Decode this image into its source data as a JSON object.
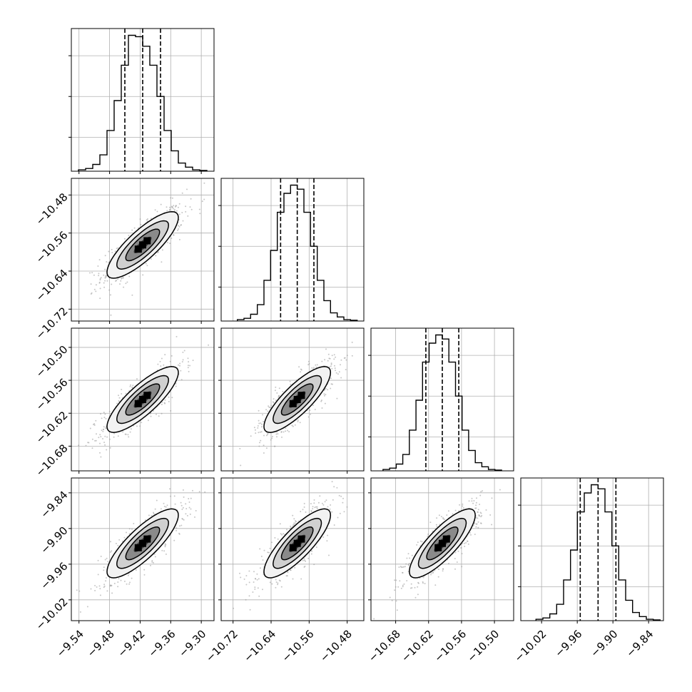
{
  "chart_data": {
    "type": "corner",
    "params": 4,
    "quantiles": [
      0.16,
      0.5,
      0.84
    ],
    "grid": true,
    "ranges": [
      [
        -9.555,
        -9.275
      ],
      [
        -10.745,
        -10.445
      ],
      [
        -10.725,
        -10.465
      ],
      [
        -10.055,
        -9.815
      ]
    ],
    "ticks": [
      [
        "−9.54",
        "−9.48",
        "−9.42",
        "−9.36",
        "−9.30"
      ],
      [
        "−10.72",
        "−10.64",
        "−10.56",
        "−10.48"
      ],
      [
        "−10.68",
        "−10.62",
        "−10.56",
        "−10.50"
      ],
      [
        "−10.02",
        "−9.96",
        "−9.90",
        "−9.84"
      ]
    ],
    "tick_values": [
      [
        -9.54,
        -9.48,
        -9.42,
        -9.36,
        -9.3
      ],
      [
        -10.72,
        -10.64,
        -10.56,
        -10.48
      ],
      [
        -10.68,
        -10.62,
        -10.56,
        -10.5
      ],
      [
        -10.02,
        -9.96,
        -9.9,
        -9.84
      ]
    ],
    "means": [
      -9.415,
      -10.585,
      -10.595,
      -9.925
    ],
    "sigmas": [
      0.035,
      0.035,
      0.03,
      0.029
    ],
    "marginal_quantiles": [
      [
        -9.45,
        -9.415,
        -9.38
      ],
      [
        -10.62,
        -10.585,
        -10.55
      ],
      [
        -10.625,
        -10.595,
        -10.565
      ],
      [
        -9.955,
        -9.925,
        -9.895
      ]
    ],
    "marginal_hist": [
      [
        0.01,
        0.02,
        0.05,
        0.12,
        0.3,
        0.52,
        0.78,
        1.0,
        0.99,
        0.92,
        0.78,
        0.55,
        0.3,
        0.15,
        0.06,
        0.03,
        0.01,
        0.005
      ],
      [
        0.01,
        0.02,
        0.05,
        0.12,
        0.3,
        0.52,
        0.8,
        0.94,
        1.0,
        0.97,
        0.8,
        0.55,
        0.3,
        0.15,
        0.06,
        0.03,
        0.01,
        0.005
      ],
      [
        0.01,
        0.02,
        0.05,
        0.12,
        0.3,
        0.52,
        0.8,
        0.94,
        1.0,
        0.97,
        0.8,
        0.55,
        0.3,
        0.15,
        0.06,
        0.03,
        0.01,
        0.005
      ],
      [
        0.01,
        0.02,
        0.05,
        0.12,
        0.3,
        0.52,
        0.8,
        0.94,
        1.0,
        0.97,
        0.8,
        0.55,
        0.3,
        0.15,
        0.06,
        0.03,
        0.01,
        0.005
      ]
    ],
    "correlation": 0.82,
    "colors": {
      "points": "#999999",
      "contour": "#000000",
      "grid": "#b0b0b0"
    }
  }
}
